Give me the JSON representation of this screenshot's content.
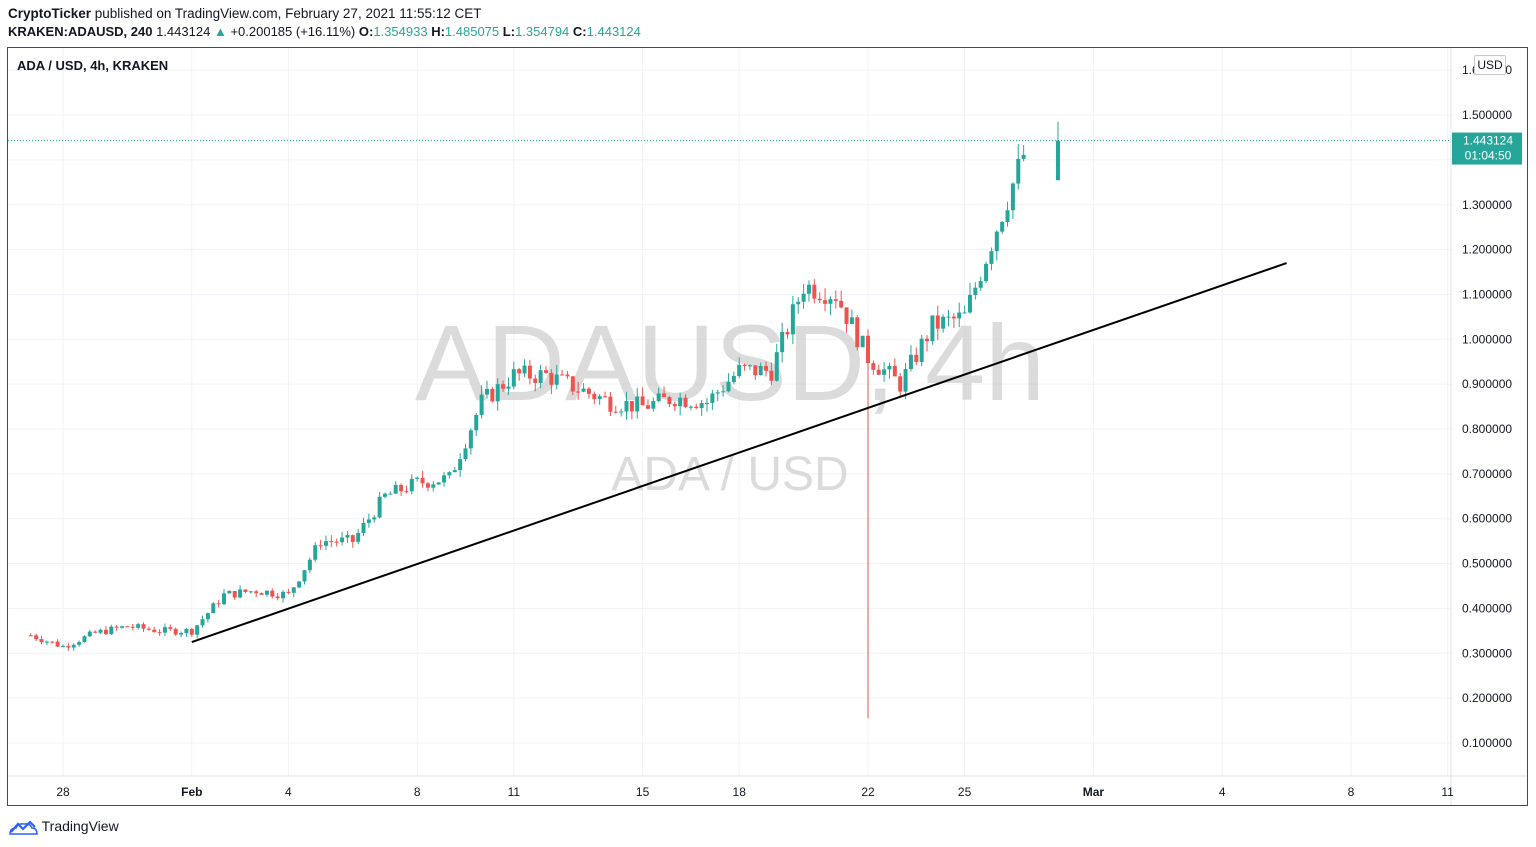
{
  "header": {
    "publisher": "CryptoTicker",
    "published_text": " published on TradingView.com, February 27, 2021 11:55:12 CET",
    "symbol_line_symbol": "KRAKEN:ADAUSD, 240",
    "last": "1.443124",
    "change": "+0.200185 (+16.11%)",
    "o_label": "O:",
    "o": "1.354933",
    "h_label": "H:",
    "h": "1.485075",
    "l_label": "L:",
    "l": "1.354794",
    "c_label": "C:",
    "c": "1.443124"
  },
  "legend": "ADA / USD, 4h, KRAKEN",
  "currency_badge": "USD",
  "watermark": {
    "main": "ADAUSD, 4h",
    "sub": "ADA / USD"
  },
  "footer": {
    "brand": "TradingView"
  },
  "colors": {
    "up": "#26a69a",
    "down": "#ef5350",
    "trendline": "#000000",
    "grid": "#f0f3fa"
  },
  "chart_data": {
    "type": "candlestick",
    "title": "ADA / USD, 4h, KRAKEN",
    "ylim": [
      0.0,
      1.6
    ],
    "y_ticks": [
      "0.100000",
      "0.200000",
      "0.300000",
      "0.400000",
      "0.500000",
      "0.600000",
      "0.700000",
      "0.800000",
      "0.900000",
      "1.000000",
      "1.100000",
      "1.200000",
      "1.300000",
      "1.400000",
      "1.500000",
      "1.600000"
    ],
    "x_ticks": [
      "28",
      "Feb",
      "4",
      "8",
      "11",
      "15",
      "18",
      "22",
      "25",
      "Mar",
      "4",
      "8",
      "11"
    ],
    "last_price_label": "1.443124",
    "countdown_label": "01:04:50",
    "trendline": {
      "from": [
        "Feb 1",
        0.325
      ],
      "to": [
        "Mar 7",
        1.17
      ]
    },
    "series": [
      {
        "d": "Jan 27",
        "close": 0.34
      },
      {
        "d": "Jan 28",
        "close": 0.315
      },
      {
        "d": "Jan 29",
        "close": 0.345
      },
      {
        "d": "Jan 30",
        "close": 0.36
      },
      {
        "d": "Jan 31",
        "close": 0.35
      },
      {
        "d": "Feb 1",
        "close": 0.35
      },
      {
        "d": "Feb 2",
        "close": 0.43
      },
      {
        "d": "Feb 3",
        "close": 0.44
      },
      {
        "d": "Feb 4",
        "close": 0.43
      },
      {
        "d": "Feb 5",
        "close": 0.55
      },
      {
        "d": "Feb 6",
        "close": 0.55
      },
      {
        "d": "Feb 7",
        "close": 0.65
      },
      {
        "d": "Feb 8",
        "close": 0.68
      },
      {
        "d": "Feb 9",
        "close": 0.69
      },
      {
        "d": "Feb 10",
        "close": 0.86
      },
      {
        "d": "Feb 11",
        "close": 0.92
      },
      {
        "d": "Feb 12",
        "close": 0.92
      },
      {
        "d": "Feb 13",
        "close": 0.89
      },
      {
        "d": "Feb 14",
        "close": 0.86
      },
      {
        "d": "Feb 15",
        "close": 0.85
      },
      {
        "d": "Feb 16",
        "close": 0.87
      },
      {
        "d": "Feb 17",
        "close": 0.86
      },
      {
        "d": "Feb 18",
        "close": 0.93
      },
      {
        "d": "Feb 19",
        "close": 0.93
      },
      {
        "d": "Feb 20",
        "close": 1.12
      },
      {
        "d": "Feb 21",
        "close": 1.1
      },
      {
        "d": "Feb 22",
        "close": 0.96
      },
      {
        "d": "Feb 23",
        "close": 0.9
      },
      {
        "d": "Feb 24",
        "close": 1.03
      },
      {
        "d": "Feb 25",
        "close": 1.05
      },
      {
        "d": "Feb 26",
        "close": 1.25
      },
      {
        "d": "Feb 27",
        "close": 1.443124
      }
    ]
  }
}
